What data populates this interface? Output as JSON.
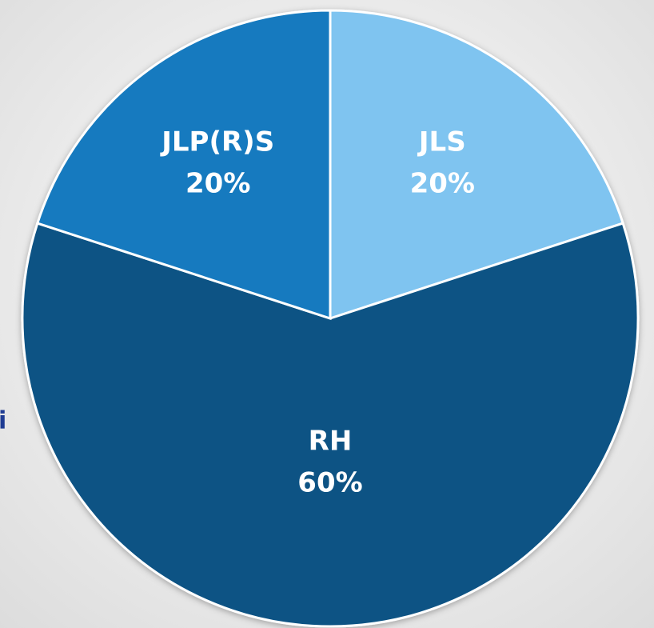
{
  "chart_data": {
    "type": "pie",
    "categories": [
      "JLS",
      "RH",
      "JLP(R)S"
    ],
    "values": [
      20,
      60,
      20
    ],
    "value_labels": [
      "20%",
      "60%",
      "20%"
    ],
    "colors": [
      "#7fc4f0",
      "#0b5384",
      "#127abf"
    ],
    "side_text": "i"
  }
}
